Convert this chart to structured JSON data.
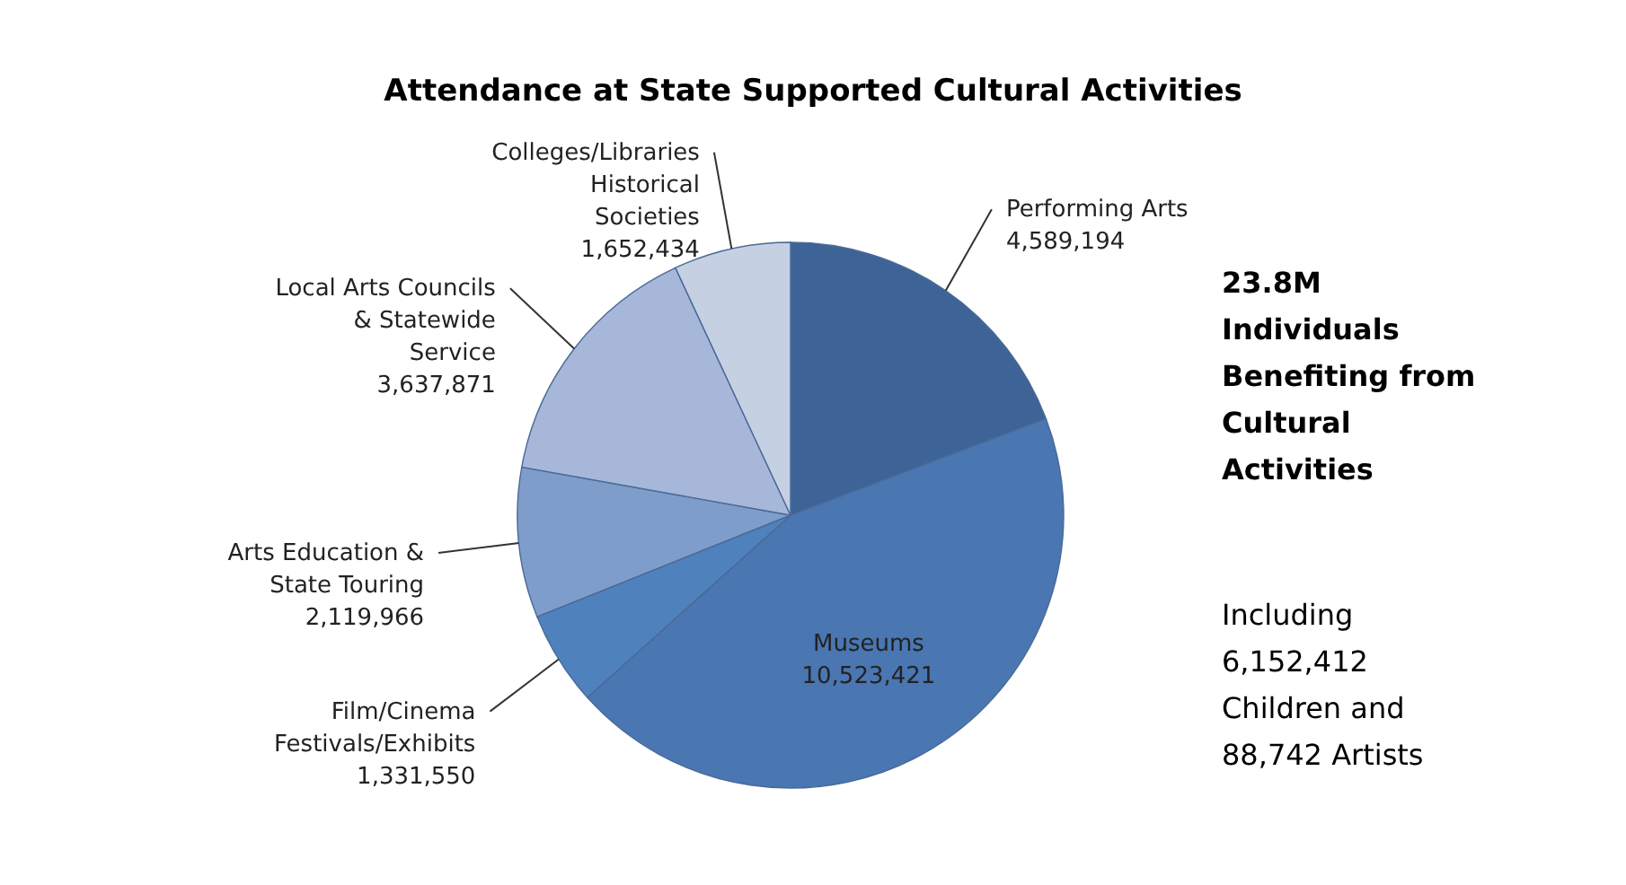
{
  "chart_data": {
    "type": "pie",
    "title": "Attendance at State Supported Cultural Activities",
    "categories": [
      "Performing Arts",
      "Museums",
      "Film/Cinema\nFestivals/Exhibits",
      "Arts Education &\nState Touring",
      "Local Arts Councils\n& Statewide\nService",
      "Colleges/Libraries\nHistorical\nSocieties"
    ],
    "values": [
      4589194,
      10523421,
      1331550,
      2119966,
      3637871,
      1652434
    ],
    "colors": [
      "#3e6497",
      "#4a76b2",
      "#4f81bd",
      "#7f9dcb",
      "#a6b7d9",
      "#c6d0e3"
    ],
    "value_labels": [
      "4,589,194",
      "10,523,421",
      "1,331,550",
      "2,119,966",
      "3,637,871",
      "1,652,434"
    ],
    "annotations": [
      "23.8M\nIndividuals\nBenefiting from\nCultural\nActivities",
      "Including\n6,152,412\nChildren and\n88,742 Artists"
    ]
  }
}
